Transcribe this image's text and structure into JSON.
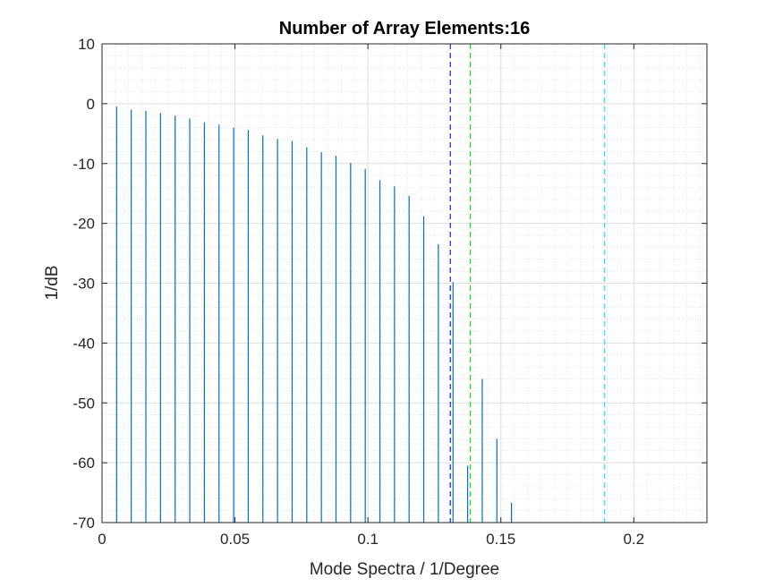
{
  "chart_data": {
    "type": "bar",
    "title": "Number of Array Elements:16",
    "xlabel": "Mode Spectra / 1/Degree",
    "ylabel": "1/dB",
    "xlim": [
      0,
      0.2275
    ],
    "ylim": [
      -70,
      10
    ],
    "xticks": [
      0,
      0.05,
      0.1,
      0.15,
      0.2
    ],
    "xtick_labels": [
      "0",
      "0.05",
      "0.1",
      "0.15",
      "0.2"
    ],
    "yticks": [
      10,
      0,
      -10,
      -20,
      -30,
      -40,
      -50,
      -60,
      -70
    ],
    "ytick_labels": [
      "10",
      "0",
      "-10",
      "-20",
      "-30",
      "-40",
      "-50",
      "-60",
      "-70"
    ],
    "grid": true,
    "minor_grid": true,
    "baseline": -70,
    "bar_color": "#0072BD",
    "series": [
      {
        "x": [
          0.0055,
          0.011,
          0.0165,
          0.022,
          0.0275,
          0.033,
          0.0385,
          0.044,
          0.0495,
          0.055,
          0.0605,
          0.066,
          0.0715,
          0.077,
          0.0825,
          0.088,
          0.0935,
          0.099,
          0.1045,
          0.11,
          0.1155,
          0.121,
          0.1265,
          0.132,
          0.1375,
          0.143,
          0.1485,
          0.154
        ],
        "values": [
          -0.5,
          -1.0,
          -1.2,
          -1.6,
          -2.0,
          -2.5,
          -3.1,
          -3.5,
          -4.0,
          -4.4,
          -5.3,
          -5.9,
          -6.2,
          -7.3,
          -8.1,
          -8.7,
          -9.9,
          -10.9,
          -12.8,
          -13.8,
          -15.4,
          -18.8,
          -23.5,
          -29.8,
          -60.5,
          -46.0,
          -56.0,
          -66.7
        ]
      }
    ],
    "vlines": [
      {
        "x": 0.131,
        "color": "#2B2BFF",
        "style": "dashed"
      },
      {
        "x": 0.1385,
        "color": "#22DD22",
        "style": "dashed"
      },
      {
        "x": 0.189,
        "color": "#22EEEE",
        "style": "dashed"
      }
    ],
    "legend": "none"
  }
}
